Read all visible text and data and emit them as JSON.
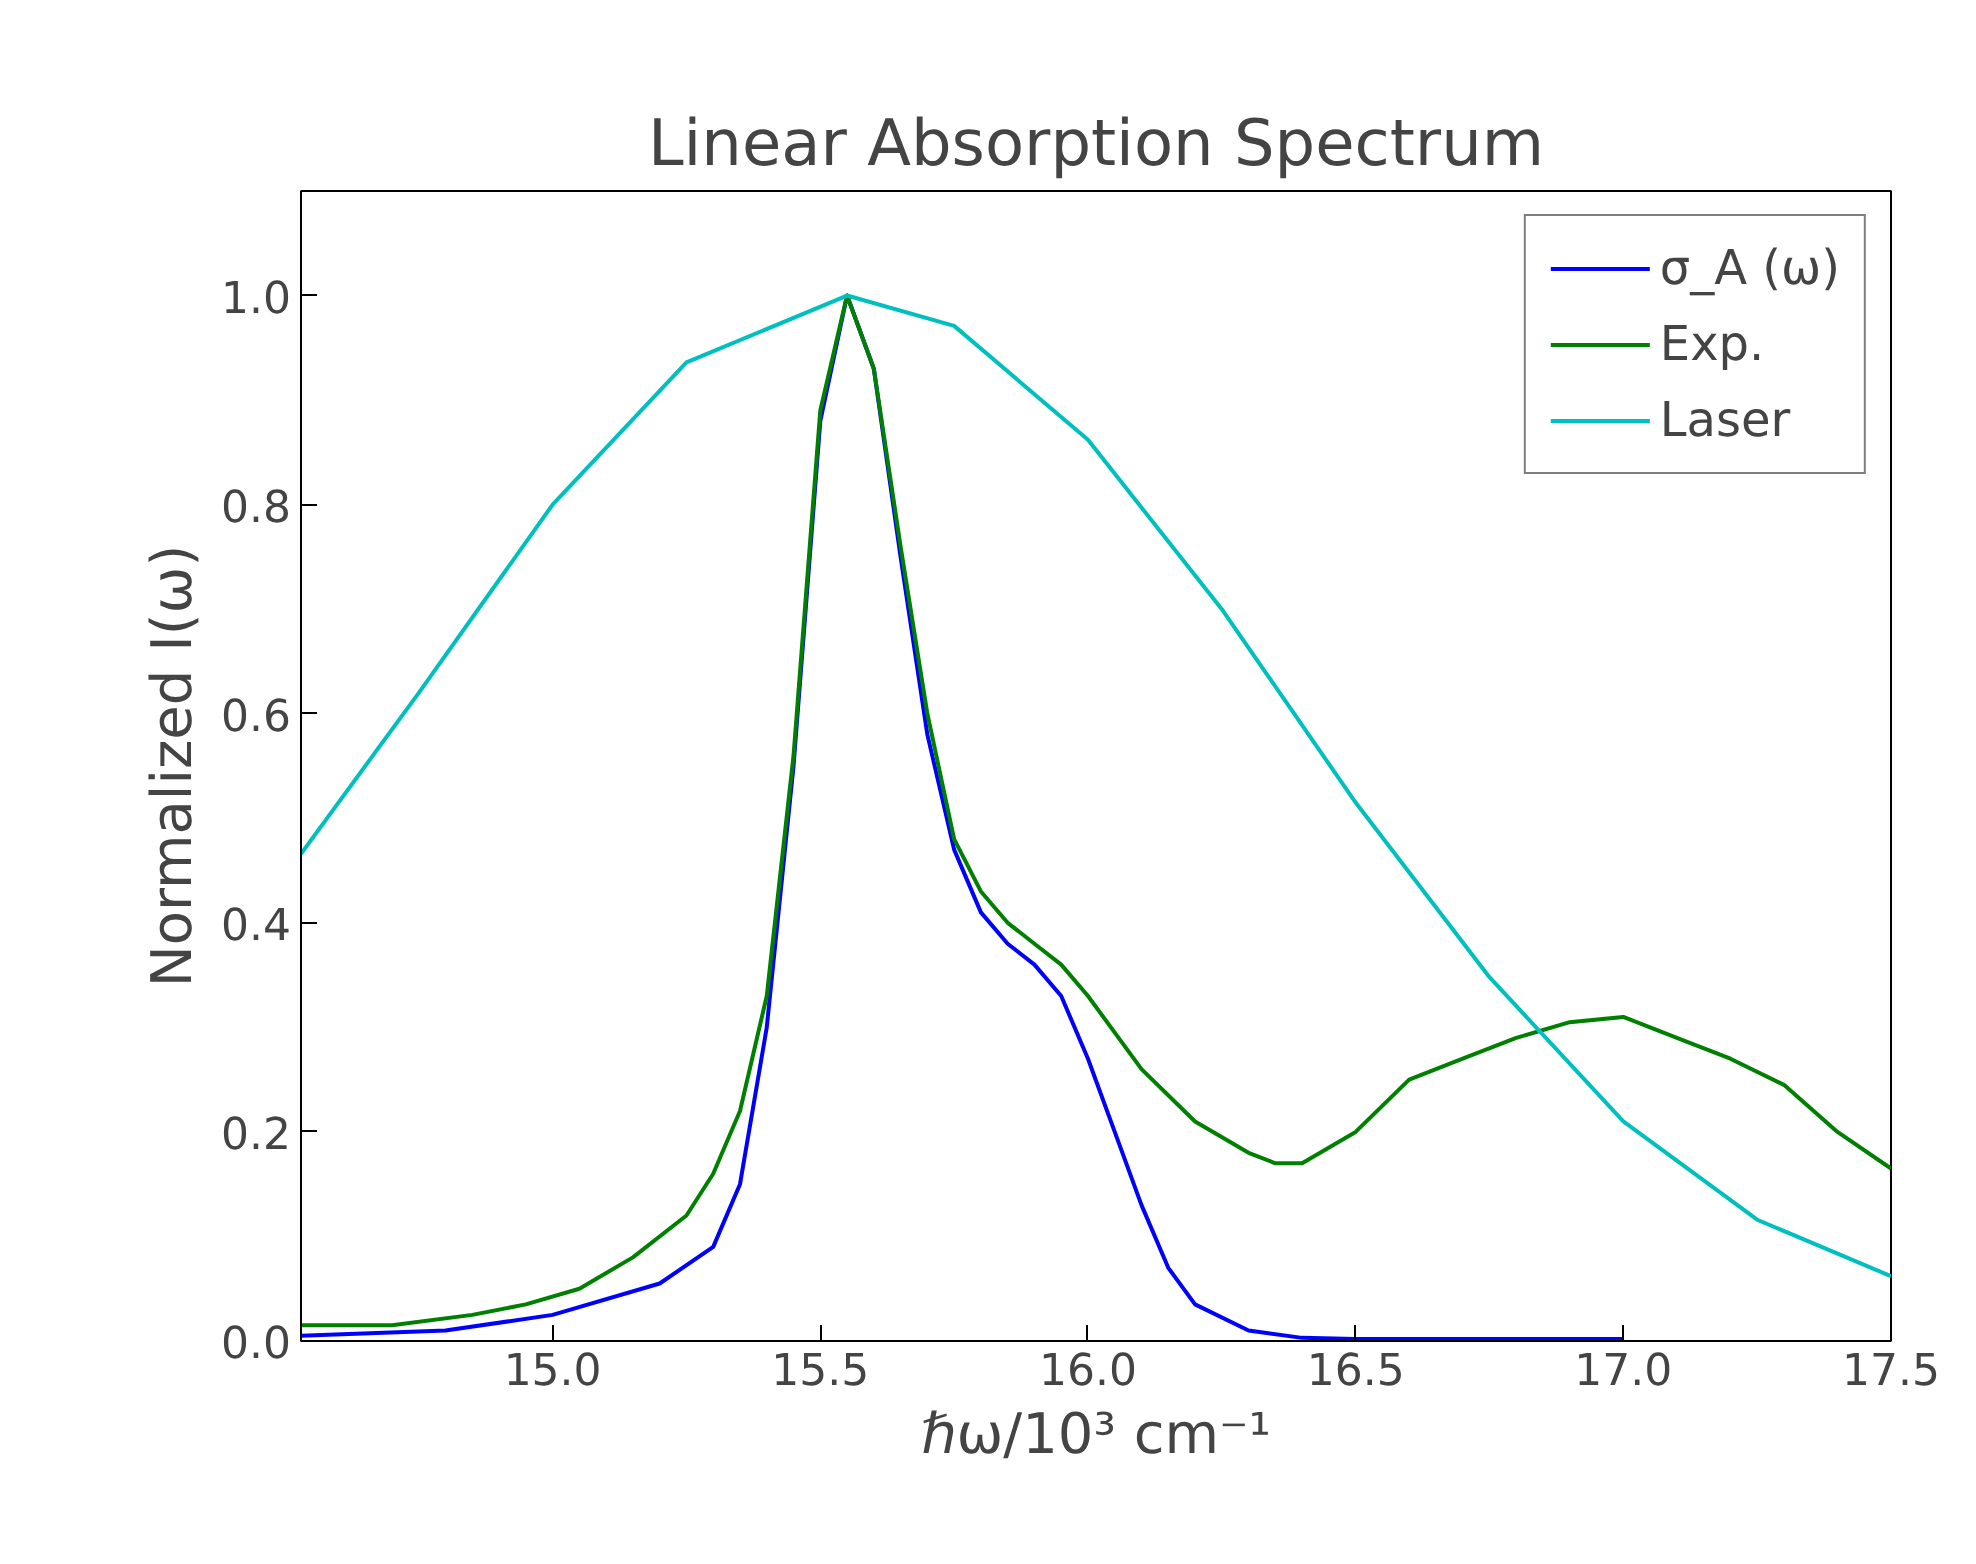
{
  "chart_data": {
    "type": "line",
    "title": "Linear Absorption Spectrum",
    "xlabel": "ℏω/10³ cm⁻¹",
    "ylabel": "Normalized I(ω)",
    "xlim": [
      14.53,
      17.5
    ],
    "ylim": [
      0,
      1.1
    ],
    "xticks": [
      {
        "value": 15.0,
        "label": "15.0"
      },
      {
        "value": 15.5,
        "label": "15.5"
      },
      {
        "value": 16.0,
        "label": "16.0"
      },
      {
        "value": 16.5,
        "label": "16.5"
      },
      {
        "value": 17.0,
        "label": "17.0"
      },
      {
        "value": 17.5,
        "label": "17.5"
      }
    ],
    "yticks": [
      {
        "value": 0,
        "label": "0.0"
      },
      {
        "value": 0.2,
        "label": "0.2"
      },
      {
        "value": 0.4,
        "label": "0.4"
      },
      {
        "value": 0.6,
        "label": "0.6"
      },
      {
        "value": 0.8,
        "label": "0.8"
      },
      {
        "value": 1.0,
        "label": "1.0"
      }
    ],
    "grid": false,
    "legend": "top right",
    "line_style": "solid",
    "marker": "none",
    "series": [
      {
        "name": "σ_A (ω)",
        "color": "#0000ff",
        "x": [
          14.53,
          14.8,
          15.0,
          15.2,
          15.3,
          15.35,
          15.4,
          15.45,
          15.5,
          15.55,
          15.6,
          15.65,
          15.7,
          15.75,
          15.8,
          15.85,
          15.9,
          15.95,
          16.0,
          16.05,
          16.1,
          16.15,
          16.2,
          16.3,
          16.4,
          16.5,
          17.0
        ],
        "values": [
          0.005,
          0.01,
          0.025,
          0.055,
          0.09,
          0.15,
          0.3,
          0.55,
          0.88,
          1.0,
          0.93,
          0.75,
          0.58,
          0.47,
          0.41,
          0.38,
          0.36,
          0.33,
          0.27,
          0.2,
          0.13,
          0.07,
          0.035,
          0.01,
          0.003,
          0.002,
          0.002
        ]
      },
      {
        "name": "Exp.",
        "color": "#008000",
        "x": [
          14.53,
          14.7,
          14.85,
          14.95,
          15.05,
          15.15,
          15.25,
          15.3,
          15.35,
          15.4,
          15.45,
          15.5,
          15.55,
          15.6,
          15.65,
          15.7,
          15.75,
          15.8,
          15.85,
          15.9,
          15.95,
          16.0,
          16.1,
          16.2,
          16.3,
          16.35,
          16.4,
          16.5,
          16.6,
          16.7,
          16.8,
          16.9,
          17.0,
          17.1,
          17.2,
          17.3,
          17.4,
          17.5
        ],
        "values": [
          0.015,
          0.015,
          0.025,
          0.035,
          0.05,
          0.08,
          0.12,
          0.16,
          0.22,
          0.33,
          0.56,
          0.89,
          1.0,
          0.93,
          0.76,
          0.6,
          0.48,
          0.43,
          0.4,
          0.38,
          0.36,
          0.33,
          0.26,
          0.21,
          0.18,
          0.17,
          0.17,
          0.2,
          0.25,
          0.27,
          0.29,
          0.305,
          0.31,
          0.29,
          0.27,
          0.245,
          0.2,
          0.165
        ]
      },
      {
        "name": "Laser",
        "color": "#00bfbf",
        "x": [
          14.53,
          14.75,
          15.0,
          15.25,
          15.55,
          15.75,
          16.0,
          16.25,
          16.5,
          16.75,
          17.0,
          17.25,
          17.5
        ],
        "values": [
          0.466,
          0.62,
          0.8,
          0.936,
          1.0,
          0.971,
          0.862,
          0.7,
          0.515,
          0.348,
          0.21,
          0.116,
          0.062
        ]
      }
    ]
  }
}
